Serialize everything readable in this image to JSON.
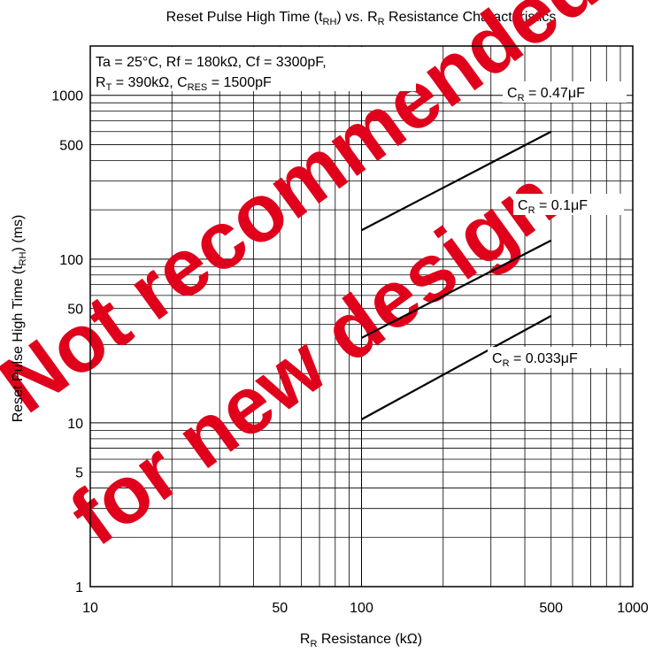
{
  "chart_data": {
    "type": "line",
    "x_scale": "log",
    "y_scale": "log",
    "xlim": [
      10,
      1000
    ],
    "ylim": [
      1,
      2000
    ],
    "grid": true,
    "x_ticks": [
      10,
      50,
      100,
      500,
      1000
    ],
    "y_ticks": [
      1,
      5,
      10,
      50,
      100,
      500,
      1000
    ],
    "title": {
      "main": "Reset Pulse High Time (t",
      "sub1": "RH",
      "mid": ") vs. R",
      "sub2": "R",
      "end": " Resistance Characteristics"
    },
    "xlabel": {
      "main": "R",
      "sub": "R",
      "rest": " Resistance (kΩ)"
    },
    "ylabel": {
      "main": "Reset Pulse High Time (t",
      "sub": "RH",
      "rest": ") (ms)"
    },
    "conditions": {
      "line1": "Ta = 25°C, Rf = 180kΩ, Cf = 3300pF,",
      "line2_a": "R",
      "line2_sub_a": "T",
      "line2_b": " = 390kΩ, C",
      "line2_sub_b": "RES",
      "line2_c": " = 1500pF"
    },
    "series": [
      {
        "name_main": "C",
        "name_sub": "R",
        "name_rest": " = 0.47μF",
        "x": [
          100,
          500
        ],
        "y": [
          150,
          600
        ]
      },
      {
        "name_main": "C",
        "name_sub": "R",
        "name_rest": " = 0.1μF",
        "x": [
          100,
          500
        ],
        "y": [
          33,
          130
        ]
      },
      {
        "name_main": "C",
        "name_sub": "R",
        "name_rest": " = 0.033μF",
        "x": [
          100,
          500
        ],
        "y": [
          10.5,
          45
        ]
      }
    ],
    "watermark": [
      "Not recommended",
      "for new design"
    ],
    "watermark_color": "#e0001b"
  }
}
